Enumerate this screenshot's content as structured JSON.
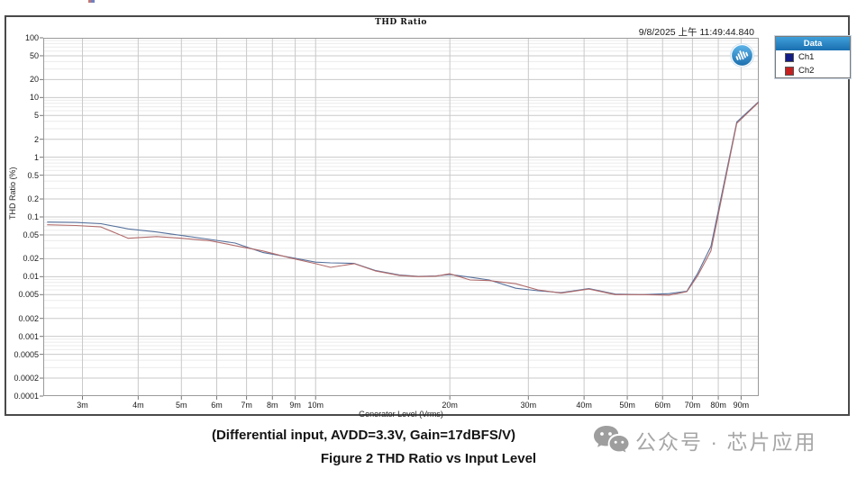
{
  "panel": {
    "title": "THD Ratio",
    "timestamp": "9/8/2025 上午 11:49:44.840"
  },
  "legend": {
    "header": "Data",
    "items": [
      {
        "label": "Ch1",
        "swatch_color": "#141c86"
      },
      {
        "label": "Ch2",
        "swatch_color": "#c42020"
      }
    ]
  },
  "chart_data": {
    "type": "line",
    "title": "THD Ratio",
    "xlabel": "Generator Level (Vrms)",
    "ylabel": "THD Ratio (%)",
    "x_scale": "log",
    "y_scale": "log",
    "xlim": [
      0.00245,
      0.0986
    ],
    "ylim": [
      0.0001,
      100
    ],
    "grid": true,
    "legend_position": "outside-right",
    "x_ticks": [
      {
        "v": 0.003,
        "label": "3m"
      },
      {
        "v": 0.004,
        "label": "4m"
      },
      {
        "v": 0.005,
        "label": "5m"
      },
      {
        "v": 0.006,
        "label": "6m"
      },
      {
        "v": 0.007,
        "label": "7m"
      },
      {
        "v": 0.008,
        "label": "8m"
      },
      {
        "v": 0.009,
        "label": "9m"
      },
      {
        "v": 0.01,
        "label": "10m"
      },
      {
        "v": 0.02,
        "label": "20m"
      },
      {
        "v": 0.03,
        "label": "30m"
      },
      {
        "v": 0.04,
        "label": "40m"
      },
      {
        "v": 0.05,
        "label": "50m"
      },
      {
        "v": 0.06,
        "label": "60m"
      },
      {
        "v": 0.07,
        "label": "70m"
      },
      {
        "v": 0.08,
        "label": "80m"
      },
      {
        "v": 0.09,
        "label": "90m"
      }
    ],
    "y_ticks": [
      {
        "v": 100,
        "label": "100"
      },
      {
        "v": 50,
        "label": "50"
      },
      {
        "v": 20,
        "label": "20"
      },
      {
        "v": 10,
        "label": "10"
      },
      {
        "v": 5,
        "label": "5"
      },
      {
        "v": 2,
        "label": "2"
      },
      {
        "v": 1,
        "label": "1"
      },
      {
        "v": 0.5,
        "label": "0.5"
      },
      {
        "v": 0.2,
        "label": "0.2"
      },
      {
        "v": 0.1,
        "label": "0.1"
      },
      {
        "v": 0.05,
        "label": "0.05"
      },
      {
        "v": 0.02,
        "label": "0.02"
      },
      {
        "v": 0.01,
        "label": "0.01"
      },
      {
        "v": 0.005,
        "label": "0.005"
      },
      {
        "v": 0.002,
        "label": "0.002"
      },
      {
        "v": 0.001,
        "label": "0.001"
      },
      {
        "v": 0.0005,
        "label": "0.0005"
      },
      {
        "v": 0.0002,
        "label": "0.0002"
      },
      {
        "v": 0.0001,
        "label": "0.0001"
      }
    ],
    "x_vrms": [
      0.0025,
      0.0029,
      0.0033,
      0.0038,
      0.0044,
      0.005,
      0.0058,
      0.0066,
      0.0076,
      0.0088,
      0.01,
      0.0108,
      0.0122,
      0.0136,
      0.0154,
      0.017,
      0.0186,
      0.02,
      0.0222,
      0.0245,
      0.0281,
      0.0315,
      0.0355,
      0.041,
      0.047,
      0.054,
      0.062,
      0.068,
      0.072,
      0.077,
      0.088,
      0.0985
    ],
    "series": [
      {
        "name": "Ch1",
        "trace_color": "#56719c",
        "values_pct": [
          0.082,
          0.081,
          0.077,
          0.063,
          0.056,
          0.049,
          0.042,
          0.0365,
          0.0255,
          0.021,
          0.0175,
          0.017,
          0.0167,
          0.0127,
          0.0107,
          0.0101,
          0.0103,
          0.0109,
          0.0098,
          0.0088,
          0.0064,
          0.0058,
          0.0054,
          0.0063,
          0.0051,
          0.005,
          0.0052,
          0.0057,
          0.0115,
          0.032,
          3.9,
          8.5
        ]
      },
      {
        "name": "Ch2",
        "trace_color": "#b06a6a",
        "values_pct": [
          0.074,
          0.072,
          0.068,
          0.044,
          0.047,
          0.044,
          0.04,
          0.033,
          0.027,
          0.0205,
          0.0165,
          0.0143,
          0.0165,
          0.0125,
          0.0105,
          0.01,
          0.0102,
          0.0112,
          0.0088,
          0.0086,
          0.0076,
          0.006,
          0.0053,
          0.0062,
          0.005,
          0.005,
          0.0049,
          0.0056,
          0.0105,
          0.027,
          3.7,
          8.3
        ]
      }
    ]
  },
  "caption": {
    "line1": "(Differential input, AVDD=3.3V, Gain=17dBFS/V)",
    "line2": "Figure 2 THD Ratio vs Input Level"
  },
  "watermark": {
    "text": "公众号 · 芯片应用"
  }
}
